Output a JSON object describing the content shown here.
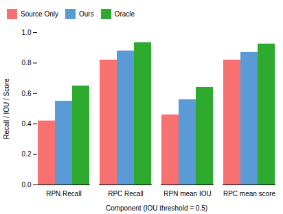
{
  "chart_data": {
    "type": "bar",
    "categories": [
      "RPN Recall",
      "RPC Recall",
      "RPN mean IOU",
      "RPC mean score"
    ],
    "series": [
      {
        "name": "Source Only",
        "color": "#F87171",
        "values": [
          0.42,
          0.82,
          0.46,
          0.82
        ]
      },
      {
        "name": "Ours",
        "color": "#5B9BD5",
        "values": [
          0.55,
          0.88,
          0.56,
          0.87
        ]
      },
      {
        "name": "Oracle",
        "color": "#2EAA2E",
        "values": [
          0.65,
          0.935,
          0.64,
          0.925
        ]
      }
    ],
    "xlabel": "Component (IOU threshold = 0.5)",
    "ylabel": "Recall / IOU / Score",
    "ylim": [
      0.0,
      1.0
    ],
    "yticks": [
      {
        "value": 0,
        "label": "0.0"
      },
      0.2,
      0.4,
      0.6,
      0.8,
      {
        "value": 1,
        "label": "1.0"
      }
    ],
    "grid": false,
    "legend": "upper left"
  }
}
